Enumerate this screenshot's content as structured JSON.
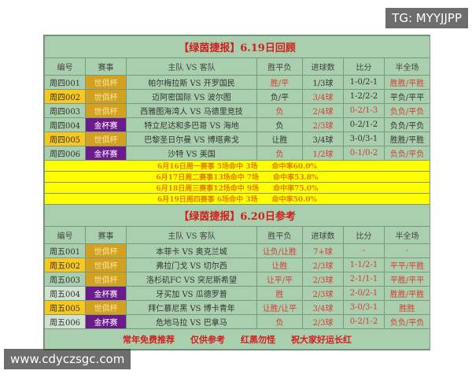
{
  "watermark_top": "TG: MYYJJPP",
  "watermark_bottom": "www.cdyczsgc.com",
  "section1": {
    "title": "【绿茵捷报】6.19日回顾",
    "headers": [
      "编号",
      "赛事",
      "主队 VS 客队",
      "胜平负",
      "进球数",
      "比分",
      "半全场"
    ],
    "rows": [
      {
        "id": "周四001",
        "id_style": "",
        "league": "世俱杯",
        "league_style": "gold",
        "match": "帕尔梅拉斯 VS 开罗国民",
        "result": "胜/平",
        "result_red": true,
        "goals": "1/3球",
        "goals_red": false,
        "score": "1-0/2-1",
        "score_red": false,
        "hf": "胜胜/平胜",
        "hf_red": true
      },
      {
        "id": "周四002",
        "id_style": "yl",
        "league": "世俱杯",
        "league_style": "gold",
        "match": "迈阿密国际 VS 波尔图",
        "result": "负/平",
        "result_red": false,
        "goals": "3/4球",
        "goals_red": true,
        "score": "1-2/2-2",
        "score_red": false,
        "hf": "平负/平平",
        "hf_red": false
      },
      {
        "id": "周四003",
        "id_style": "",
        "league": "世俱杯",
        "league_style": "gold",
        "match": "西雅图海湾人 VS 马德里竞技",
        "result": "负",
        "result_red": true,
        "goals": "2/4球",
        "goals_red": true,
        "score": "0-2/1-3",
        "score_red": true,
        "hf": "负负/平负",
        "hf_red": true
      },
      {
        "id": "周四004",
        "id_style": "",
        "league": "金杯赛",
        "league_style": "purple",
        "match": "特立尼达和多巴哥 VS 海地",
        "result": "负",
        "result_red": false,
        "goals": "2/3球",
        "goals_red": true,
        "score": "0-2/1-2",
        "score_red": false,
        "hf": "负负/平负",
        "hf_red": false
      },
      {
        "id": "周四005",
        "id_style": "yl",
        "league": "世俱杯",
        "league_style": "gold",
        "match": "巴黎圣日尔曼 VS 博塔弗戈",
        "result": "让胜",
        "result_red": false,
        "goals": "3/4球",
        "goals_red": false,
        "score": "3-0/3-1",
        "score_red": false,
        "hf": "胜胜/平胜",
        "hf_red": false
      },
      {
        "id": "周四006",
        "id_style": "",
        "league": "金杯赛",
        "league_style": "purple",
        "match": "沙特 VS 美国",
        "result": "负",
        "result_red": true,
        "goals": "1/2球",
        "goals_red": true,
        "score": "0-1/0-2",
        "score_red": true,
        "hf": "负负/平负",
        "hf_red": true
      }
    ]
  },
  "stats": [
    "6月16日周一赛事 5场命中 3场　　命中率60.0%",
    "6月17日周二赛事13场命中 7场　　命中率53.8%",
    "6月18日周三赛事12场命中 9场　　命中率75.0%",
    "6月19日周四赛事 6场命中 3场　　命中率50.0%"
  ],
  "section2": {
    "title": "【绿茵捷报】6.20日参考",
    "headers": [
      "编号",
      "赛事",
      "主队 VS 客队",
      "胜平负",
      "进球数",
      "比分",
      "半全场"
    ],
    "rows": [
      {
        "id": "周五001",
        "id_style": "",
        "league": "世俱杯",
        "league_style": "gold",
        "match": "本菲卡 VS 奥克兰城",
        "result": "让负/让胜",
        "result_red": true,
        "goals": "7+球",
        "goals_red": true,
        "score": "-",
        "score_red": true,
        "hf": "-",
        "hf_red": true
      },
      {
        "id": "周五002",
        "id_style": "yl",
        "league": "世俱杯",
        "league_style": "gold",
        "match": "弗拉门戈 VS 切尔西",
        "result": "让胜",
        "result_red": true,
        "goals": "2/3球",
        "goals_red": true,
        "score": "1-1/2-1",
        "score_red": true,
        "hf": "平平/平胜",
        "hf_red": true
      },
      {
        "id": "周五003",
        "id_style": "",
        "league": "世俱杯",
        "league_style": "gold",
        "match": "洛杉矶FC VS 突尼斯希望",
        "result": "让平/平",
        "result_red": true,
        "goals": "2/3球",
        "goals_red": true,
        "score": "2-1/1-1",
        "score_red": true,
        "hf": "平胜/平平",
        "hf_red": true
      },
      {
        "id": "周五004",
        "id_style": "lt",
        "league": "金杯赛",
        "league_style": "purple",
        "match": "牙买加 VS 瓜德罗普",
        "result": "胜",
        "result_red": true,
        "goals": "2/3球",
        "goals_red": true,
        "score": "2-0/2-1",
        "score_red": true,
        "hf": "胜胜/平胜",
        "hf_red": true
      },
      {
        "id": "周五005",
        "id_style": "yl",
        "league": "世俱杯",
        "league_style": "gold",
        "match": "拜仁慕尼黑 VS 博卡青年",
        "result": "让胜/让平",
        "result_red": true,
        "goals": "3/4球",
        "goals_red": true,
        "score": "3-0/3-1",
        "score_red": true,
        "hf": "胜胜",
        "hf_red": true
      },
      {
        "id": "周五006",
        "id_style": "lt",
        "league": "金杯赛",
        "league_style": "purple",
        "match": "危地马拉 VS 巴拿马",
        "result": "负",
        "result_red": true,
        "goals": "2/3球",
        "goals_red": true,
        "score": "0-2/1-2",
        "score_red": true,
        "hf": "负负/平负",
        "hf_red": true
      }
    ]
  },
  "footer": [
    "常年免费推荐",
    "仅供参考",
    "红黑勿怪",
    "祝大家好运长红"
  ]
}
